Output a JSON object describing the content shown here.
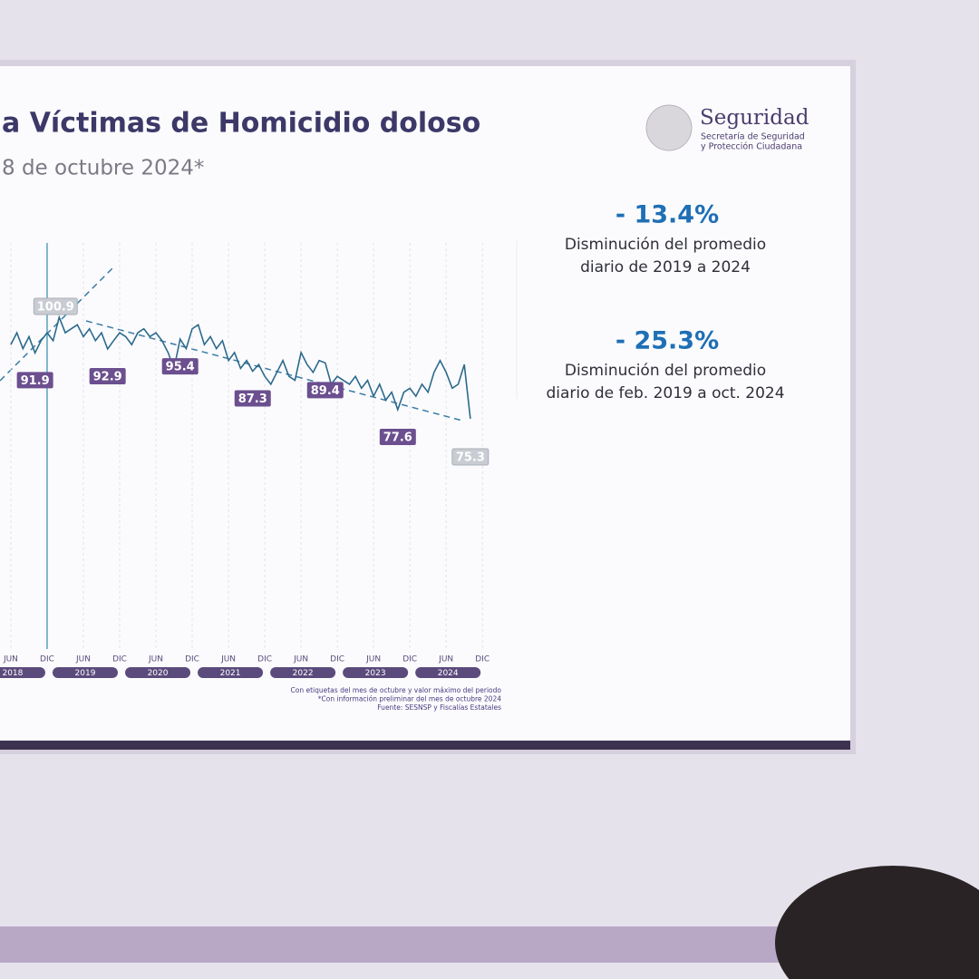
{
  "chart_data": {
    "type": "line",
    "title": "a Víctimas de Homicidio doloso",
    "subtitle": "8 de octubre 2024*",
    "logo_title": "Seguridad",
    "logo_subtitle": [
      "Secretaría de Seguridad",
      "y Protección Ciudadana"
    ],
    "x": [
      "2018-06",
      "2018-07",
      "2018-08",
      "2018-09",
      "2018-10",
      "2018-11",
      "2018-12",
      "2019-01",
      "2019-02",
      "2019-03",
      "2019-04",
      "2019-05",
      "2019-06",
      "2019-07",
      "2019-08",
      "2019-09",
      "2019-10",
      "2019-11",
      "2019-12",
      "2020-01",
      "2020-02",
      "2020-03",
      "2020-04",
      "2020-05",
      "2020-06",
      "2020-07",
      "2020-08",
      "2020-09",
      "2020-10",
      "2020-11",
      "2020-12",
      "2021-01",
      "2021-02",
      "2021-03",
      "2021-04",
      "2021-05",
      "2021-06",
      "2021-07",
      "2021-08",
      "2021-09",
      "2021-10",
      "2021-11",
      "2021-12",
      "2022-01",
      "2022-02",
      "2022-03",
      "2022-04",
      "2022-05",
      "2022-06",
      "2022-07",
      "2022-08",
      "2022-09",
      "2022-10",
      "2022-11",
      "2022-12",
      "2023-01",
      "2023-02",
      "2023-03",
      "2023-04",
      "2023-05",
      "2023-06",
      "2023-07",
      "2023-08",
      "2023-09",
      "2023-10",
      "2023-11",
      "2023-12",
      "2024-01",
      "2024-02",
      "2024-03",
      "2024-04",
      "2024-05",
      "2024-06",
      "2024-07",
      "2024-08",
      "2024-09",
      "2024-10"
    ],
    "series": [
      {
        "color": "#2c6a8c",
        "values": [
          94,
          97,
          93,
          96,
          91.9,
          95,
          97,
          95,
          100.9,
          97,
          98,
          99,
          96,
          98,
          95,
          97,
          92.9,
          95,
          97,
          96,
          94,
          97,
          98,
          96,
          97,
          95,
          92,
          88,
          95.4,
          93,
          98,
          99,
          94,
          96,
          93,
          95,
          90,
          92,
          88,
          90,
          87.3,
          89,
          86,
          84,
          87,
          90,
          86,
          85,
          92,
          89,
          87,
          90,
          89.4,
          84,
          86,
          85,
          84,
          86,
          83,
          85,
          81,
          84,
          80,
          82,
          77.6,
          82,
          83,
          81,
          84,
          82,
          87,
          90,
          87,
          83,
          84,
          89,
          75.3
        ],
        "value_labels": [
          null,
          null,
          null,
          null,
          "91.9",
          null,
          null,
          null,
          "100.9",
          null,
          null,
          null,
          null,
          null,
          null,
          null,
          "92.9",
          null,
          null,
          null,
          null,
          null,
          null,
          null,
          null,
          null,
          null,
          null,
          "95.4",
          null,
          null,
          null,
          null,
          null,
          null,
          null,
          null,
          null,
          null,
          null,
          "87.3",
          null,
          null,
          null,
          null,
          null,
          null,
          null,
          null,
          null,
          null,
          null,
          "89.4",
          null,
          null,
          null,
          null,
          null,
          null,
          null,
          null,
          null,
          null,
          null,
          "77.6",
          null,
          null,
          null,
          null,
          null,
          null,
          null,
          null,
          null,
          null,
          null,
          "75.3"
        ]
      }
    ],
    "xticks": [
      {
        "value": "2018-06",
        "label": "JUN"
      },
      {
        "value": "2018-12",
        "label": "DIC"
      },
      {
        "value": "2019-06",
        "label": "JUN"
      },
      {
        "value": "2019-12",
        "label": "DIC"
      },
      {
        "value": "2020-06",
        "label": "JUN"
      },
      {
        "value": "2020-12",
        "label": "DIC"
      },
      {
        "value": "2021-06",
        "label": "JUN"
      },
      {
        "value": "2021-12",
        "label": "DIC"
      },
      {
        "value": "2022-06",
        "label": "JUN"
      },
      {
        "value": "2022-12",
        "label": "DIC"
      },
      {
        "value": "2023-06",
        "label": "JUN"
      },
      {
        "value": "2023-12",
        "label": "DIC"
      },
      {
        "value": "2024-06",
        "label": "JUN"
      },
      {
        "value": "2024-12",
        "label": "DIC"
      }
    ],
    "year_labels": [
      "2018",
      "2019",
      "2020",
      "2021",
      "2022",
      "2023",
      "2024"
    ],
    "grid": true,
    "annotations": [
      {
        "value": "- 13.4%",
        "lines": [
          "Disminución del promedio",
          "diario de 2019 a 2024"
        ]
      },
      {
        "value": "- 25.3%",
        "lines": [
          "Disminución del promedio",
          "diario de feb. 2019 a oct. 2024"
        ]
      }
    ],
    "footnotes": [
      "Con etiquetas del mes de octubre y valor máximo del periodo",
      "*Con información preliminar del mes de octubre 2024",
      "Fuente: SESNSP y Fiscalías Estatales"
    ]
  }
}
